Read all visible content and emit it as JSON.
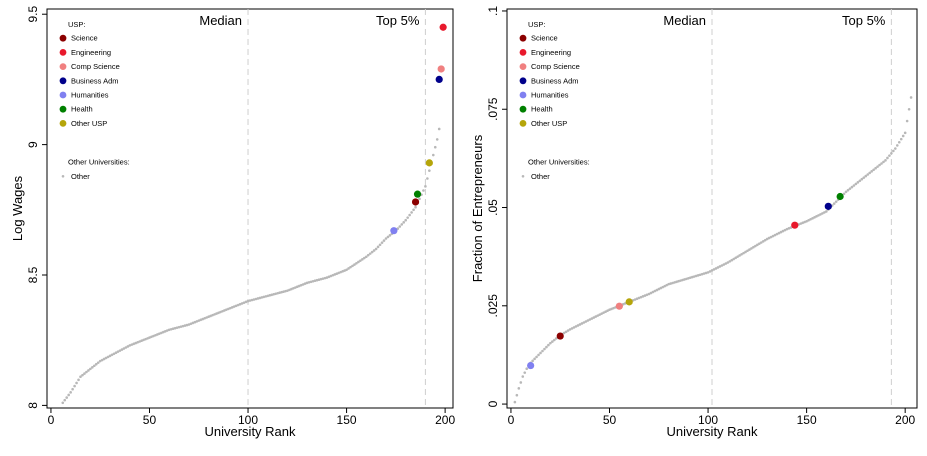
{
  "chart_data": [
    {
      "type": "scatter",
      "xlabel": "University Rank",
      "ylabel": "Log Wages",
      "xlim": [
        -2,
        204
      ],
      "ylim": [
        7.99,
        9.52
      ],
      "xticks": [
        0,
        50,
        100,
        150,
        200
      ],
      "xtick_labels": [
        "0",
        "50",
        "100",
        "150",
        "200"
      ],
      "yticks": [
        8,
        8.5,
        9,
        9.5
      ],
      "ytick_labels": [
        "8",
        "8.5",
        "9",
        "9.5"
      ],
      "vlines": [
        {
          "x": 100,
          "label": "Median"
        },
        {
          "x": 190,
          "label": "Top 5%"
        }
      ],
      "other_universities": {
        "name": "Other",
        "color": "#b8b8b8",
        "rank_range": [
          6,
          197
        ],
        "curve_points": [
          [
            6,
            8.01
          ],
          [
            10,
            8.05
          ],
          [
            15,
            8.11
          ],
          [
            20,
            8.14
          ],
          [
            25,
            8.17
          ],
          [
            30,
            8.19
          ],
          [
            40,
            8.23
          ],
          [
            50,
            8.26
          ],
          [
            60,
            8.29
          ],
          [
            70,
            8.31
          ],
          [
            80,
            8.34
          ],
          [
            90,
            8.37
          ],
          [
            100,
            8.4
          ],
          [
            110,
            8.42
          ],
          [
            120,
            8.44
          ],
          [
            130,
            8.47
          ],
          [
            140,
            8.49
          ],
          [
            150,
            8.52
          ],
          [
            160,
            8.57
          ],
          [
            165,
            8.6
          ],
          [
            170,
            8.64
          ],
          [
            175,
            8.67
          ],
          [
            180,
            8.71
          ],
          [
            185,
            8.76
          ],
          [
            190,
            8.84
          ],
          [
            192,
            8.9
          ],
          [
            194,
            8.96
          ],
          [
            196,
            9.02
          ],
          [
            197,
            9.06
          ]
        ]
      },
      "usp": [
        {
          "name": "Science",
          "color": "#8b0000",
          "x": 185,
          "y": 8.78
        },
        {
          "name": "Engineering",
          "color": "#e8192c",
          "x": 199,
          "y": 9.45
        },
        {
          "name": "Comp Science",
          "color": "#f08080",
          "x": 198,
          "y": 9.29
        },
        {
          "name": "Business Adm",
          "color": "#00008b",
          "x": 197,
          "y": 9.25
        },
        {
          "name": "Humanities",
          "color": "#8080f0",
          "x": 174,
          "y": 8.67
        },
        {
          "name": "Health",
          "color": "#008000",
          "x": 186,
          "y": 8.81
        },
        {
          "name": "Other USP",
          "color": "#b5a50a",
          "x": 192,
          "y": 8.93
        }
      ],
      "legend": {
        "usp_title": "USP:",
        "other_title": "Other Universities:",
        "other_label": "Other",
        "placement": "top-left"
      }
    },
    {
      "type": "scatter",
      "xlabel": "University Rank",
      "ylabel": "Fraction of Entrepreneurs",
      "xlim": [
        -2,
        206
      ],
      "ylim": [
        -0.001,
        0.1005
      ],
      "xticks": [
        0,
        50,
        100,
        150,
        200
      ],
      "xtick_labels": [
        "0",
        "50",
        "100",
        "150",
        "200"
      ],
      "yticks": [
        0,
        0.025,
        0.05,
        0.075,
        0.1
      ],
      "ytick_labels": [
        "0",
        ".025",
        ".05",
        ".075",
        ".1"
      ],
      "vlines": [
        {
          "x": 102,
          "label": "Median"
        },
        {
          "x": 193,
          "label": "Top 5%"
        }
      ],
      "other_universities": {
        "name": "Other",
        "color": "#b8b8b8",
        "rank_range": [
          2,
          203
        ],
        "curve_points": [
          [
            2,
            0.0005
          ],
          [
            4,
            0.004
          ],
          [
            6,
            0.007
          ],
          [
            8,
            0.009
          ],
          [
            10,
            0.0105
          ],
          [
            15,
            0.013
          ],
          [
            20,
            0.0155
          ],
          [
            25,
            0.0175
          ],
          [
            30,
            0.019
          ],
          [
            40,
            0.0215
          ],
          [
            50,
            0.024
          ],
          [
            60,
            0.026
          ],
          [
            70,
            0.028
          ],
          [
            80,
            0.0305
          ],
          [
            90,
            0.032
          ],
          [
            100,
            0.0335
          ],
          [
            110,
            0.036
          ],
          [
            120,
            0.039
          ],
          [
            130,
            0.042
          ],
          [
            140,
            0.0445
          ],
          [
            150,
            0.0465
          ],
          [
            160,
            0.049
          ],
          [
            170,
            0.054
          ],
          [
            180,
            0.058
          ],
          [
            190,
            0.062
          ],
          [
            195,
            0.065
          ],
          [
            200,
            0.069
          ],
          [
            203,
            0.078
          ]
        ]
      },
      "usp": [
        {
          "name": "Science",
          "color": "#8b0000",
          "x": 25,
          "y": 0.0173
        },
        {
          "name": "Engineering",
          "color": "#e8192c",
          "x": 144,
          "y": 0.0455
        },
        {
          "name": "Comp Science",
          "color": "#f08080",
          "x": 55,
          "y": 0.0249
        },
        {
          "name": "Business Adm",
          "color": "#00008b",
          "x": 161,
          "y": 0.0503
        },
        {
          "name": "Humanities",
          "color": "#8080f0",
          "x": 10,
          "y": 0.0098
        },
        {
          "name": "Health",
          "color": "#008000",
          "x": 167,
          "y": 0.0528
        },
        {
          "name": "Other USP",
          "color": "#b5a50a",
          "x": 60,
          "y": 0.026
        }
      ],
      "legend": {
        "usp_title": "USP:",
        "other_title": "Other Universities:",
        "other_label": "Other",
        "placement": "top-left"
      }
    }
  ]
}
